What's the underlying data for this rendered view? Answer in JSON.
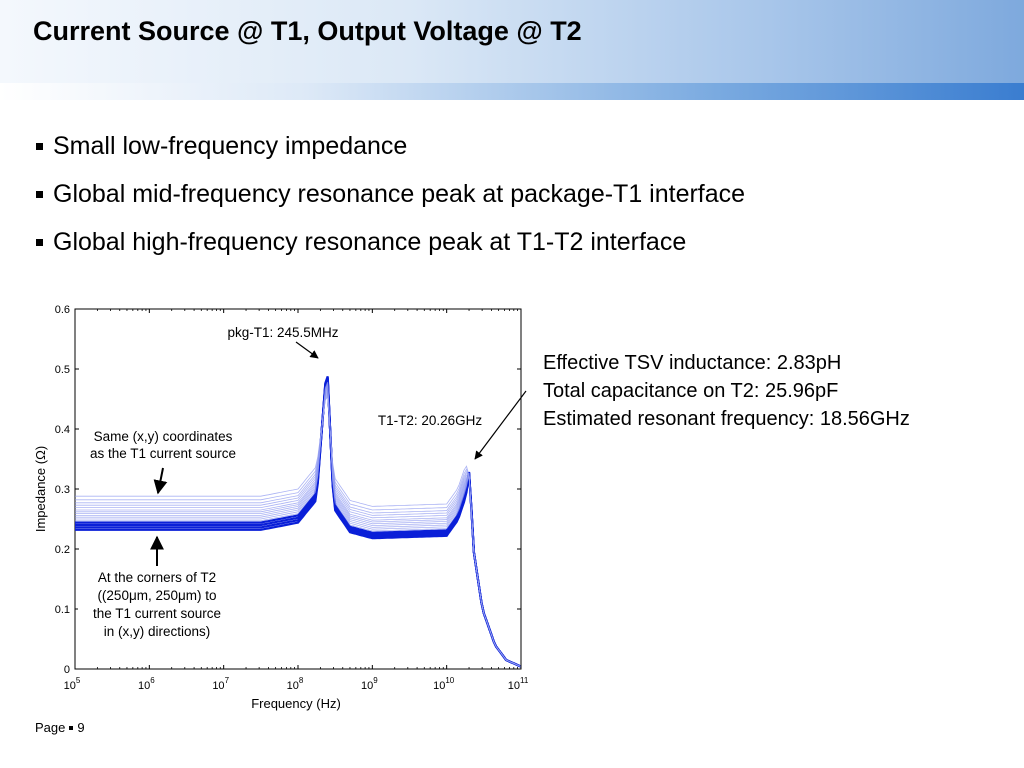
{
  "slide": {
    "title": "Current Source @ T1, Output Voltage @ T2",
    "bullets": [
      "Small low-frequency impedance",
      "Global mid-frequency resonance peak at package-T1 interface",
      "Global high-frequency resonance peak at T1-T2 interface"
    ],
    "notes": [
      "Effective TSV inductance:  2.83pH",
      "Total capacitance on T2: 25.96pF",
      "Estimated resonant frequency: 18.56GHz"
    ],
    "footer": {
      "page_label": "Page",
      "page_number": "9"
    }
  },
  "colors": {
    "series_dark": "#0a1fd8",
    "series_light": "#8f9af0"
  },
  "chart_data": {
    "type": "line",
    "xlabel": "Frequency (Hz)",
    "ylabel": "Impedance (Ω)",
    "xscale": "log",
    "xlim": [
      100000,
      100000000000
    ],
    "ylim": [
      0,
      0.6
    ],
    "grid": false,
    "x_ticks": [
      {
        "base": "10",
        "exp": "5"
      },
      {
        "base": "10",
        "exp": "6"
      },
      {
        "base": "10",
        "exp": "7"
      },
      {
        "base": "10",
        "exp": "8"
      },
      {
        "base": "10",
        "exp": "9"
      },
      {
        "base": "10",
        "exp": "10"
      },
      {
        "base": "10",
        "exp": "11"
      }
    ],
    "y_ticks": [
      "0",
      "0.1",
      "0.2",
      "0.3",
      "0.4",
      "0.5",
      "0.6"
    ],
    "x_tick_values": [
      5,
      6,
      7,
      8,
      9,
      10,
      11
    ],
    "y_tick_values": [
      0,
      0.1,
      0.2,
      0.3,
      0.4,
      0.5,
      0.6
    ],
    "family": {
      "freq_hz": [
        100000,
        1000000,
        10000000,
        30000000,
        80000000,
        150000000,
        200000000,
        230000000,
        245500000,
        262000000,
        300000000,
        400000000,
        600000000,
        1000000000,
        3000000000,
        8000000000,
        14000000000,
        18000000000,
        20260000000,
        23000000000,
        30000000000,
        40000000000,
        60000000000,
        100000000000
      ],
      "base_series": [
        {
          "low": 0.232,
          "mid": 0.218
        },
        {
          "low": 0.236,
          "mid": 0.221
        },
        {
          "low": 0.24,
          "mid": 0.224
        },
        {
          "low": 0.244,
          "mid": 0.227
        },
        {
          "low": 0.247,
          "mid": 0.23
        },
        {
          "low": 0.25,
          "mid": 0.233
        },
        {
          "low": 0.253,
          "mid": 0.236
        },
        {
          "low": 0.256,
          "mid": 0.239
        },
        {
          "low": 0.259,
          "mid": 0.242
        },
        {
          "low": 0.262,
          "mid": 0.245
        },
        {
          "low": 0.265,
          "mid": 0.248
        },
        {
          "low": 0.269,
          "mid": 0.252
        },
        {
          "low": 0.273,
          "mid": 0.256
        },
        {
          "low": 0.277,
          "mid": 0.26
        },
        {
          "low": 0.282,
          "mid": 0.265
        },
        {
          "low": 0.288,
          "mid": 0.271
        }
      ],
      "peak_mid_freq_hz": 245500000,
      "peak_mid_value": 0.515,
      "peak_high_freq_hz": 20260000000,
      "peak_high_value": 0.335
    },
    "annotations": [
      {
        "text": "pkg-T1: 245.5MHz"
      },
      {
        "text": "T1-T2: 20.26GHz"
      },
      {
        "lines": [
          "Same (x,y) coordinates",
          "as the T1 current source"
        ]
      },
      {
        "lines": [
          "At the corners of T2",
          "((250μm, 250μm) to",
          "the T1 current source",
          "in (x,y) directions)"
        ]
      }
    ]
  }
}
